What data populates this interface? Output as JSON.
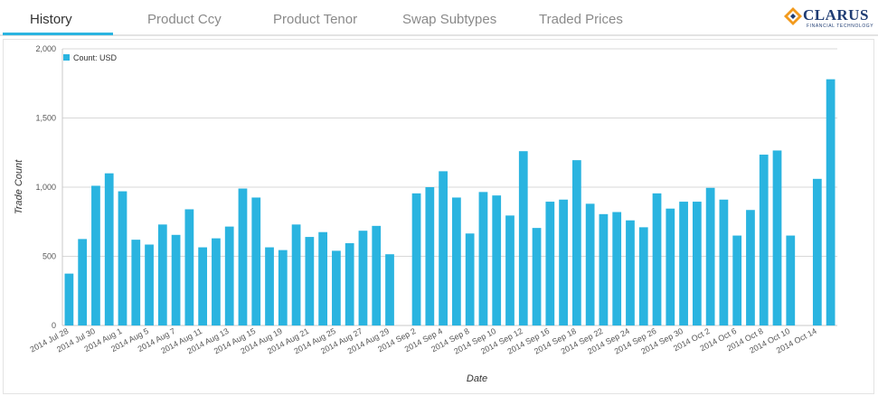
{
  "tabs": [
    {
      "label": "History",
      "active": true
    },
    {
      "label": "Product Ccy",
      "active": false
    },
    {
      "label": "Product Tenor",
      "active": false
    },
    {
      "label": "Swap Subtypes",
      "active": false
    },
    {
      "label": "Traded Prices",
      "active": false
    }
  ],
  "logo": {
    "name": "CLARUS",
    "tagline": "FINANCIAL TECHNOLOGY"
  },
  "colors": {
    "accent": "#2ab4e0",
    "bar": "#2ab4e0",
    "grid": "#d8d8d8",
    "logo_blue": "#1f3c73",
    "logo_orange": "#f29a1d"
  },
  "chart_data": {
    "type": "bar",
    "xlabel": "Date",
    "ylabel": "Trade Count",
    "ylim": [
      0,
      2000
    ],
    "yticks": [
      "0",
      "500",
      "1,000",
      "1,500",
      "2,000"
    ],
    "grid": true,
    "legend_position": "top-left",
    "series": [
      {
        "name": "Count: USD",
        "values": [
          375,
          625,
          1010,
          1100,
          970,
          620,
          585,
          730,
          655,
          840,
          565,
          630,
          715,
          990,
          925,
          565,
          545,
          730,
          640,
          675,
          540,
          595,
          685,
          720,
          515,
          null,
          955,
          1000,
          1115,
          925,
          665,
          965,
          940,
          795,
          1260,
          705,
          895,
          910,
          1195,
          880,
          805,
          820,
          760,
          710,
          955,
          845,
          895,
          895,
          995,
          910,
          650,
          835,
          1235,
          1265,
          650,
          null,
          1060,
          1780
        ]
      }
    ],
    "category_labels": [
      "2014 Jul 28",
      "2014 Jul 30",
      "2014 Aug 1",
      "2014 Aug 5",
      "2014 Aug 7",
      "2014 Aug 11",
      "2014 Aug 13",
      "2014 Aug 15",
      "2014 Aug 19",
      "2014 Aug 21",
      "2014 Aug 25",
      "2014 Aug 27",
      "2014 Aug 29",
      "2014 Sep 2",
      "2014 Sep 4",
      "2014 Sep 8",
      "2014 Sep 10",
      "2014 Sep 12",
      "2014 Sep 16",
      "2014 Sep 18",
      "2014 Sep 22",
      "2014 Sep 24",
      "2014 Sep 26",
      "2014 Sep 30",
      "2014 Oct 2",
      "2014 Oct 6",
      "2014 Oct 8",
      "2014 Oct 10",
      "2014 Oct 14"
    ],
    "label_slots": [
      0,
      2,
      4,
      6,
      8,
      10,
      12,
      14,
      16,
      18,
      20,
      22,
      24,
      26,
      28,
      30,
      32,
      34,
      36,
      38,
      40,
      42,
      44,
      46,
      48,
      50,
      52,
      54,
      56
    ]
  }
}
